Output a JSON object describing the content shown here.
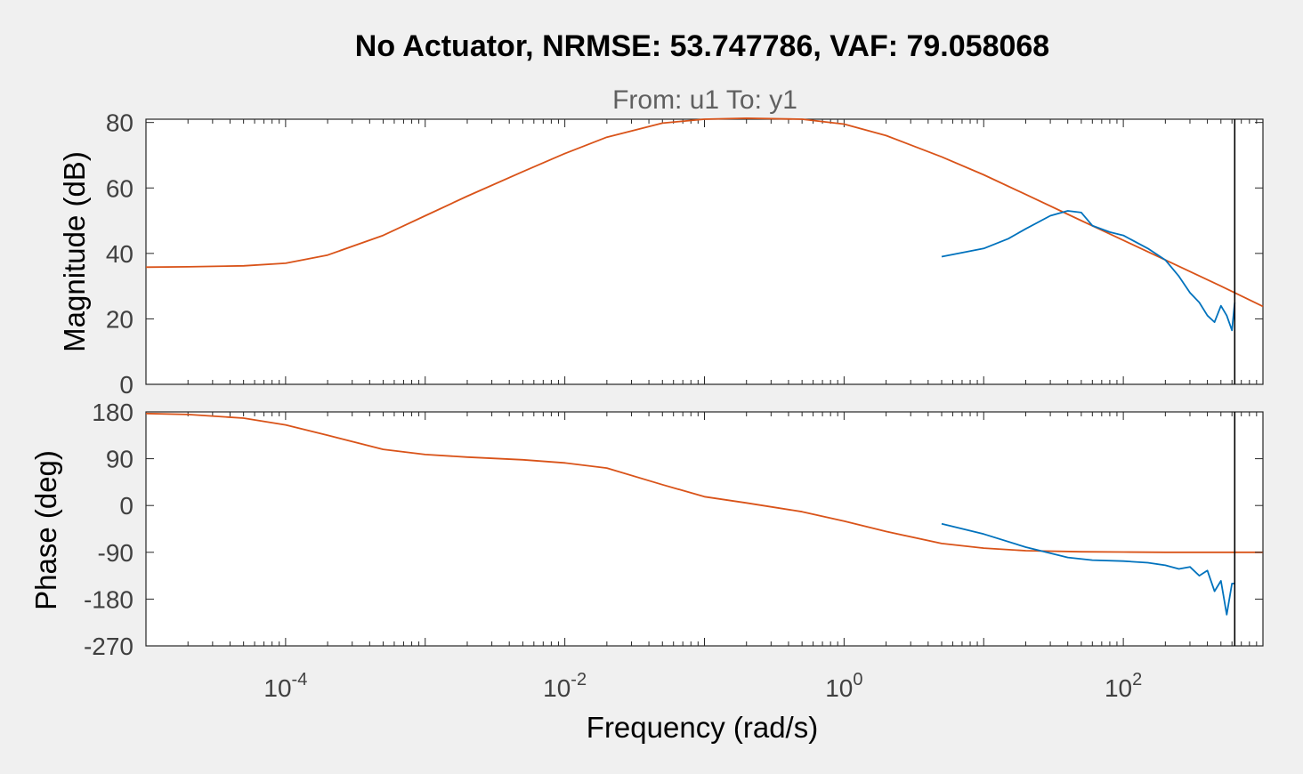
{
  "chart_data": [
    {
      "type": "line",
      "panel": "magnitude",
      "title": "No Actuator, NRMSE: 53.747786, VAF: 79.058068",
      "subtitle": "From: u1  To: y1",
      "ylabel": "Magnitude (dB)",
      "xscale": "log",
      "xlim": [
        1e-05,
        1000
      ],
      "ylim": [
        0,
        81
      ],
      "yticks": [
        "0",
        "20",
        "40",
        "60",
        "80"
      ],
      "vertical_marker_x": 628,
      "series": [
        {
          "color": "#D95319",
          "x": [
            1e-05,
            2e-05,
            5e-05,
            0.0001,
            0.0002,
            0.0005,
            0.001,
            0.002,
            0.005,
            0.01,
            0.02,
            0.05,
            0.1,
            0.2,
            0.5,
            1,
            2,
            5,
            10,
            20,
            50,
            100,
            200,
            500,
            1000
          ],
          "values": [
            35.8,
            35.9,
            36.2,
            37.0,
            39.5,
            45.5,
            51.5,
            57.5,
            65.0,
            70.5,
            75.5,
            79.8,
            81.0,
            81.3,
            81.0,
            79.5,
            76.0,
            69.5,
            64.0,
            58.0,
            50.0,
            44.0,
            38.0,
            30.0,
            23.8
          ]
        },
        {
          "color": "#0072BD",
          "x": [
            5,
            10,
            15,
            20,
            30,
            40,
            50,
            60,
            80,
            100,
            150,
            200,
            250,
            300,
            350,
            400,
            450,
            500,
            550,
            600,
            628
          ],
          "values": [
            39.0,
            41.5,
            44.5,
            47.5,
            51.5,
            53.0,
            52.5,
            48.5,
            46.5,
            45.5,
            41.5,
            38.0,
            33.0,
            28.0,
            25.0,
            21.0,
            19.0,
            24.0,
            21.0,
            16.5,
            25.0
          ]
        }
      ]
    },
    {
      "type": "line",
      "panel": "phase",
      "xlabel": "Frequency  (rad/s)",
      "ylabel": "Phase (deg)",
      "xscale": "log",
      "xlim": [
        1e-05,
        1000
      ],
      "ylim": [
        -270,
        180
      ],
      "yticks": [
        "-270",
        "-180",
        "-90",
        "0",
        "90",
        "180"
      ],
      "xticks": [
        {
          "base": "10",
          "exp": "-4",
          "value": 0.0001
        },
        {
          "base": "10",
          "exp": "-2",
          "value": 0.01
        },
        {
          "base": "10",
          "exp": "0",
          "value": 1
        },
        {
          "base": "10",
          "exp": "2",
          "value": 100
        }
      ],
      "vertical_marker_x": 628,
      "series": [
        {
          "color": "#D95319",
          "x": [
            1e-05,
            2e-05,
            5e-05,
            0.0001,
            0.0002,
            0.0005,
            0.001,
            0.002,
            0.005,
            0.01,
            0.02,
            0.05,
            0.1,
            0.2,
            0.5,
            1,
            2,
            5,
            10,
            20,
            50,
            100,
            200,
            500,
            1000
          ],
          "values": [
            177,
            175,
            168,
            155,
            135,
            108,
            98,
            93,
            88,
            82,
            72,
            40,
            17,
            5,
            -12,
            -30,
            -50,
            -73,
            -82,
            -87,
            -89,
            -89.5,
            -90,
            -90,
            -90
          ]
        },
        {
          "color": "#0072BD",
          "x": [
            5,
            10,
            20,
            40,
            60,
            100,
            150,
            200,
            250,
            300,
            350,
            400,
            450,
            500,
            550,
            600,
            628
          ],
          "values": [
            -35,
            -55,
            -80,
            -100,
            -105,
            -107,
            -110,
            -115,
            -122,
            -118,
            -135,
            -125,
            -165,
            -145,
            -210,
            -150,
            -150
          ]
        }
      ]
    }
  ]
}
